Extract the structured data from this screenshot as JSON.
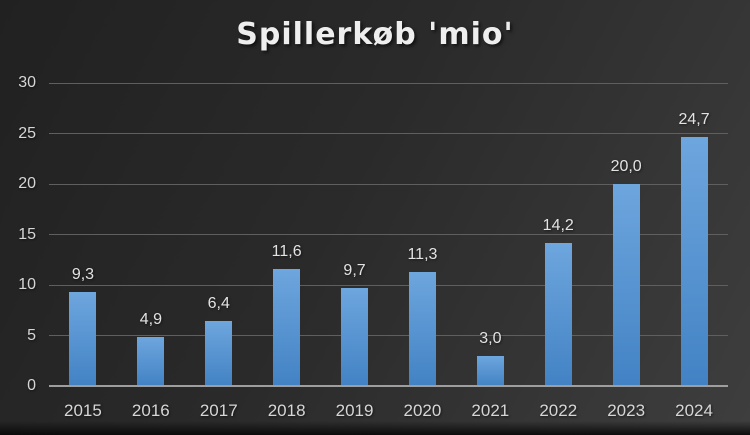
{
  "title": "Spillerkøb 'mio'",
  "chart_data": {
    "type": "bar",
    "title": "Spillerkøb 'mio'",
    "categories": [
      "2015",
      "2016",
      "2017",
      "2018",
      "2019",
      "2020",
      "2021",
      "2022",
      "2023",
      "2024"
    ],
    "values": [
      9.3,
      4.9,
      6.4,
      11.6,
      9.7,
      11.3,
      3.0,
      14.2,
      20.0,
      24.7
    ],
    "value_labels": [
      "9,3",
      "4,9",
      "6,4",
      "11,6",
      "9,7",
      "11,3",
      "3,0",
      "14,2",
      "20,0",
      "24,7"
    ],
    "xlabel": "",
    "ylabel": "",
    "ylim": [
      0,
      30
    ],
    "yticks": [
      30,
      25,
      20,
      15,
      10,
      5,
      0
    ],
    "grid": true,
    "legend": "none",
    "decimal_separator": ","
  },
  "colors": {
    "bar_top": "#6ea6de",
    "bar_bottom": "#4282c4",
    "gridline": "#5f5f5f",
    "axis_line": "#9e9e9e",
    "tick_label": "#d6d6d6",
    "value_label": "#e3e3e3",
    "title": "#eeeeee",
    "background_dark": "#212121",
    "background_light": "#3e3e3e"
  }
}
